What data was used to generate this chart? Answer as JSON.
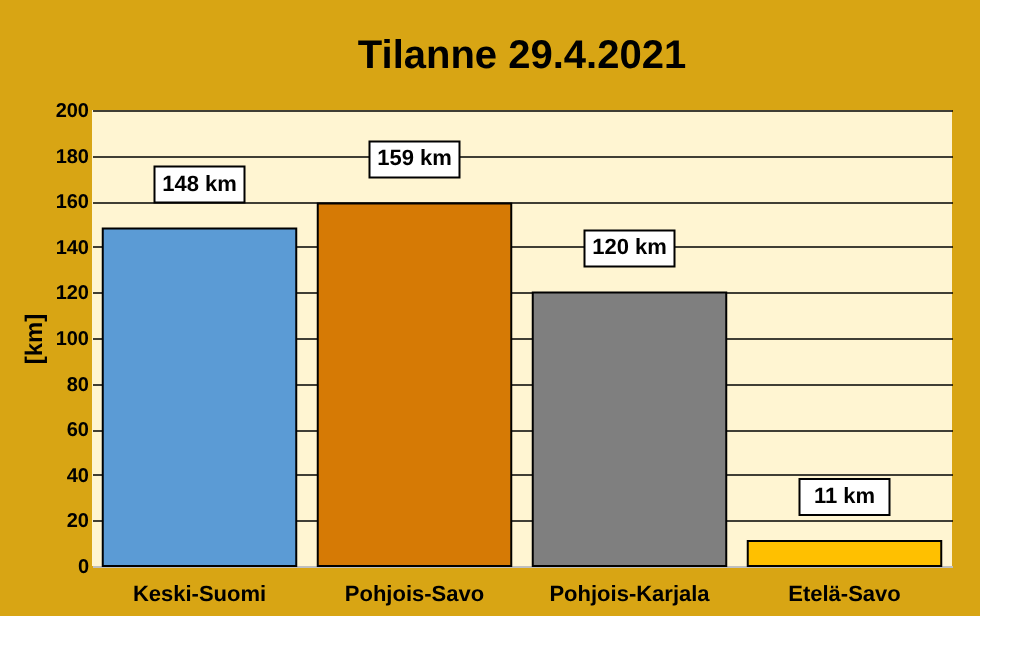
{
  "chart_data": {
    "type": "bar",
    "title": "Tilanne 29.4.2021",
    "ylabel": "[km]",
    "categories": [
      "Keski-Suomi",
      "Pohjois-Savo",
      "Pohjois-Karjala",
      "Etelä-Savo"
    ],
    "values": [
      148,
      159,
      120,
      11
    ],
    "colors": [
      "#5b9bd5",
      "#d67a05",
      "#7f7f7f",
      "#ffc000"
    ],
    "value_labels": [
      "148 km",
      "159 km",
      "120 km",
      "11 km"
    ],
    "ylim": [
      0,
      200
    ],
    "yticks": [
      0,
      20,
      40,
      60,
      80,
      100,
      120,
      140,
      160,
      180,
      200
    ],
    "grid": "y"
  }
}
